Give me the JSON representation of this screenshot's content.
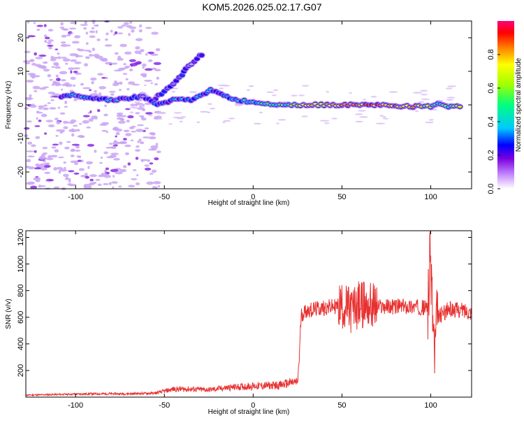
{
  "title": "KOM5.2026.025.02.17.G07",
  "chart_data": [
    {
      "type": "heatmap",
      "title": "",
      "xlabel": "Height of straight line (km)",
      "ylabel": "Frequency (Hz)",
      "xlim": [
        -128,
        123
      ],
      "ylim": [
        -25,
        25
      ],
      "x_ticks": [
        -100,
        -50,
        0,
        50,
        100
      ],
      "y_ticks": [
        -20,
        -10,
        0,
        10,
        20
      ],
      "colorbar": {
        "label": "Normalized spectral amplitude",
        "range": [
          0,
          1
        ],
        "ticks": [
          0.0,
          0.2,
          0.4,
          0.6,
          0.8
        ],
        "tick_labels": [
          "0.0",
          "0.2",
          "0.4",
          "0.6",
          "0.8"
        ]
      },
      "main_ridge": [
        {
          "x": -108,
          "y": 2.5,
          "a": 0.22
        },
        {
          "x": -100,
          "y": 3.0,
          "a": 0.28
        },
        {
          "x": -90,
          "y": 2.0,
          "a": 0.25
        },
        {
          "x": -80,
          "y": 1.5,
          "a": 0.3
        },
        {
          "x": -70,
          "y": 2.0,
          "a": 0.25
        },
        {
          "x": -62,
          "y": 2.5,
          "a": 0.2
        },
        {
          "x": -54,
          "y": 0.0,
          "a": 0.22
        },
        {
          "x": -45,
          "y": 1.5,
          "a": 0.3
        },
        {
          "x": -35,
          "y": 1.5,
          "a": 0.32
        },
        {
          "x": -28,
          "y": 3.0,
          "a": 0.3
        },
        {
          "x": -24,
          "y": 4.8,
          "a": 0.28
        },
        {
          "x": -18,
          "y": 3.0,
          "a": 0.3
        },
        {
          "x": -10,
          "y": 1.5,
          "a": 0.35
        },
        {
          "x": 0,
          "y": 0.8,
          "a": 0.4
        },
        {
          "x": 10,
          "y": 0.3,
          "a": 0.45
        },
        {
          "x": 20,
          "y": 0.0,
          "a": 0.5
        },
        {
          "x": 30,
          "y": 0.0,
          "a": 0.7
        },
        {
          "x": 40,
          "y": 0.0,
          "a": 0.75
        },
        {
          "x": 50,
          "y": 0.0,
          "a": 0.8
        },
        {
          "x": 60,
          "y": 0.0,
          "a": 0.8
        },
        {
          "x": 70,
          "y": 0.0,
          "a": 0.85
        },
        {
          "x": 80,
          "y": -0.3,
          "a": 0.8
        },
        {
          "x": 90,
          "y": -0.5,
          "a": 0.75
        },
        {
          "x": 100,
          "y": -0.5,
          "a": 0.6
        },
        {
          "x": 104,
          "y": 0.5,
          "a": 0.4
        },
        {
          "x": 110,
          "y": -0.5,
          "a": 0.6
        },
        {
          "x": 118,
          "y": -0.5,
          "a": 0.55
        }
      ],
      "branch_ridge": [
        {
          "x": -55,
          "y": 2.0,
          "a": 0.2
        },
        {
          "x": -50,
          "y": 4.0,
          "a": 0.2
        },
        {
          "x": -45,
          "y": 6.0,
          "a": 0.18
        },
        {
          "x": -40,
          "y": 9.0,
          "a": 0.18
        },
        {
          "x": -38,
          "y": 10.5,
          "a": 0.15
        },
        {
          "x": -30,
          "y": 14.5,
          "a": 0.2
        },
        {
          "x": -28,
          "y": 15.0,
          "a": 0.18
        }
      ]
    },
    {
      "type": "line",
      "title": "",
      "xlabel": "Height of straight line (km)",
      "ylabel": "SNR (v/v)",
      "xlim": [
        -128,
        123
      ],
      "ylim": [
        0,
        1250
      ],
      "x_ticks": [
        -100,
        -50,
        0,
        50,
        100
      ],
      "y_ticks": [
        200,
        400,
        600,
        800,
        1000,
        1200
      ],
      "series": [
        {
          "color": "#e83030",
          "x": [
            -128,
            -110,
            -90,
            -70,
            -55,
            -45,
            -35,
            -25,
            -15,
            -5,
            5,
            15,
            22,
            25,
            26,
            27,
            30,
            40,
            50,
            55,
            60,
            70,
            80,
            90,
            98,
            100,
            102,
            104,
            110,
            120,
            123
          ],
          "y": [
            15,
            20,
            25,
            25,
            30,
            60,
            60,
            55,
            70,
            80,
            85,
            90,
            110,
            110,
            300,
            620,
            650,
            670,
            690,
            650,
            700,
            680,
            680,
            680,
            670,
            1050,
            300,
            600,
            660,
            650,
            640
          ]
        }
      ]
    }
  ]
}
